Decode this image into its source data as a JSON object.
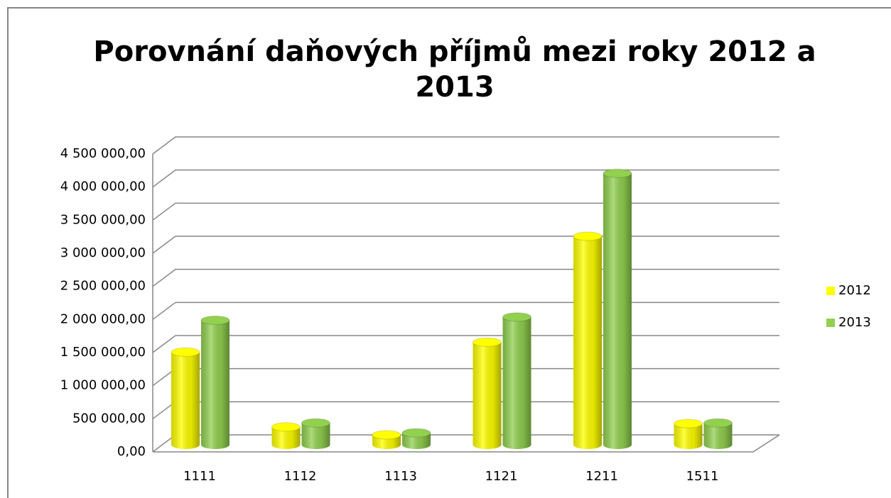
{
  "chart_data": {
    "type": "bar3d",
    "title": [
      "Porovnání daňových příjmů mezi roky 2012 a",
      "2013"
    ],
    "categories": [
      "1111",
      "1112",
      "1113",
      "1121",
      "1211",
      "1511"
    ],
    "series": [
      {
        "name": "2012",
        "color": "#ffff00",
        "values": [
          1400000,
          270000,
          150000,
          1550000,
          3150000,
          320000
        ]
      },
      {
        "name": "2013",
        "color": "#92d050",
        "values": [
          1880000,
          330000,
          180000,
          1930000,
          4100000,
          330000
        ]
      }
    ],
    "ylim": [
      0,
      4500000
    ],
    "yticks": [
      {
        "value": 0,
        "label": "0,00"
      },
      {
        "value": 500000,
        "label": "500 000,00"
      },
      {
        "value": 1000000,
        "label": "1 000 000,00"
      },
      {
        "value": 1500000,
        "label": "1 500 000,00"
      },
      {
        "value": 2000000,
        "label": "2 000 000,00"
      },
      {
        "value": 2500000,
        "label": "2 500 000,00"
      },
      {
        "value": 3000000,
        "label": "3 000 000,00"
      },
      {
        "value": 3500000,
        "label": "3 500 000,00"
      },
      {
        "value": 4000000,
        "label": "4 000 000,00"
      },
      {
        "value": 4500000,
        "label": "4 500 000,00"
      }
    ],
    "grid": true,
    "legend": "right"
  }
}
